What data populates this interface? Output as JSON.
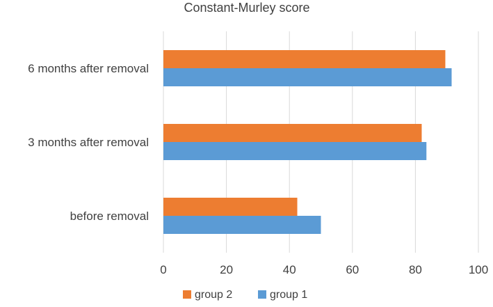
{
  "chart_data": {
    "type": "bar",
    "orientation": "horizontal",
    "title": "Constant-Murley score",
    "xlabel": "",
    "ylabel": "",
    "categories": [
      "before removal",
      "3 months after removal",
      "6 months after removal"
    ],
    "series": [
      {
        "name": "group 1",
        "color": "#5B9BD5",
        "values": [
          50,
          83.5,
          91.5
        ]
      },
      {
        "name": "group 2",
        "color": "#ED7D31",
        "values": [
          42.5,
          82,
          89.5
        ]
      }
    ],
    "xlim": [
      0,
      100
    ],
    "xticks": [
      0,
      20,
      40,
      60,
      80,
      100
    ],
    "grid": "vertical",
    "legend": [
      "group 2",
      "group 1"
    ],
    "legend_position": "bottom"
  }
}
